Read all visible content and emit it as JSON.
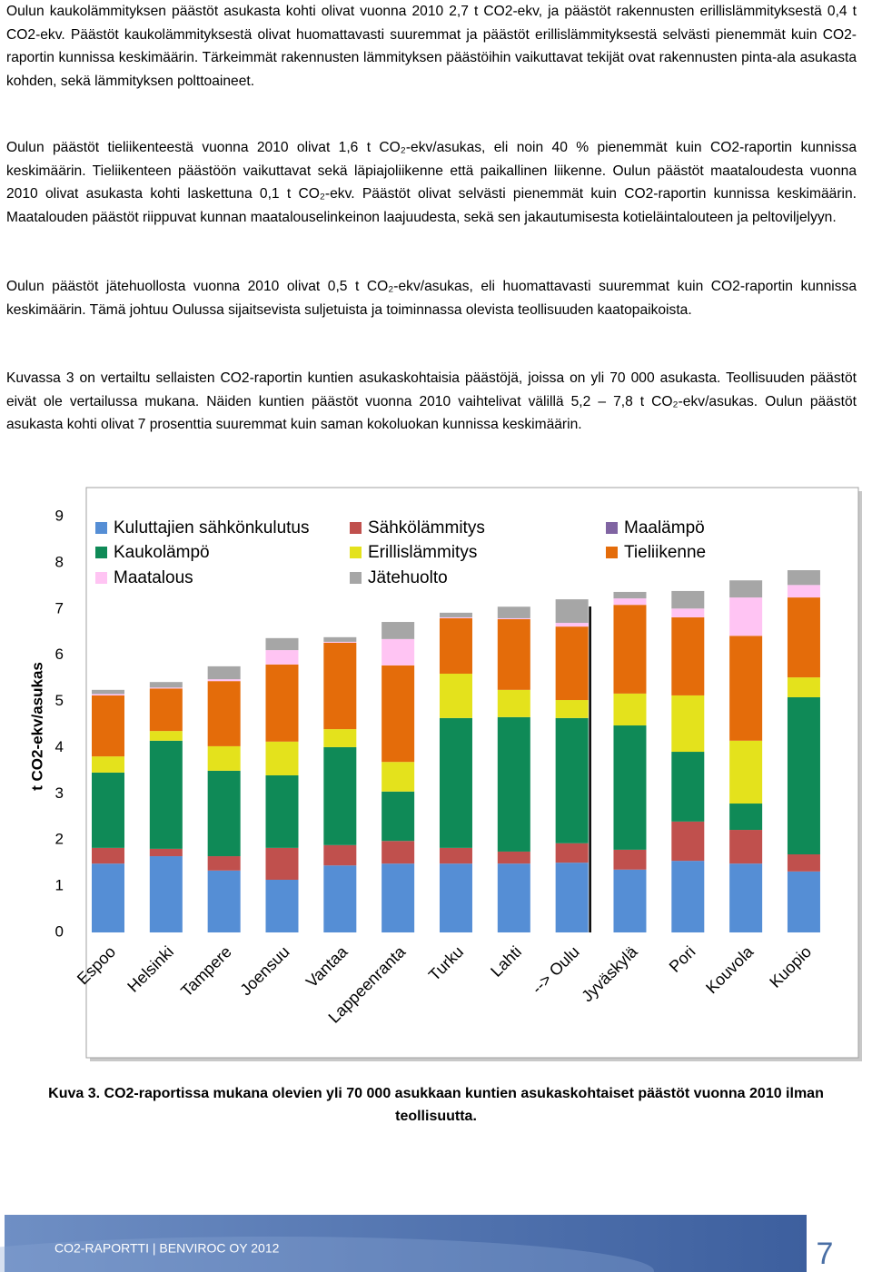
{
  "paragraphs": [
    "Oulun kaukolämmityksen päästöt asukasta kohti olivat vuonna 2010 2,7 t CO2-ekv, ja päästöt rakennusten erillislämmityksestä 0,4 t CO2-ekv. Päästöt kaukolämmityksestä olivat huomattavasti suuremmat ja päästöt erillislämmityksestä selvästi pienemmät kuin CO2-raportin kunnissa keskimäärin. Tärkeimmät rakennusten lämmityksen päästöihin vaikuttavat tekijät ovat rakennusten pinta-ala asukasta kohden, sekä lämmityksen polttoaineet.",
    "Oulun päästöt tieliikenteestä vuonna 2010 olivat 1,6 t CO₂-ekv/asukas, eli noin 40 % pienemmät kuin CO2-raportin kunnissa keskimäärin. Tieliikenteen päästöön vaikuttavat sekä läpiajoliikenne että paikallinen liikenne. Oulun päästöt maataloudesta vuonna 2010 olivat asukasta kohti laskettuna 0,1 t CO₂-ekv. Päästöt olivat selvästi pienemmät kuin CO2-raportin kunnissa keskimäärin. Maatalouden päästöt riippuvat kunnan maatalouselinkeinon laajuudesta, sekä sen jakautumisesta kotieläintalouteen ja peltoviljelyyn.",
    "Oulun päästöt jätehuollosta vuonna 2010 olivat 0,5 t CO₂-ekv/asukas, eli huomattavasti suuremmat kuin CO2-raportin kunnissa keskimäärin. Tämä johtuu Oulussa sijaitsevista suljetuista ja toiminnassa olevista teollisuuden kaatopaikoista.",
    "Kuvassa 3 on vertailtu sellaisten CO2-raportin kuntien asukaskohtaisia päästöjä, joissa on yli 70 000 asukasta. Teollisuuden päästöt eivät ole vertailussa mukana. Näiden kuntien päästöt vuonna 2010 vaihtelivat välillä 5,2 – 7,8 t CO₂-ekv/asukas. Oulun päästöt asukasta kohti olivat 7 prosenttia suuremmat kuin saman kokoluokan kunnissa keskimäärin."
  ],
  "chart_data": {
    "type": "stacked_bar",
    "y_label": "t CO2-ekv/asukas",
    "categories": [
      "Espoo",
      "Helsinki",
      "Tampere",
      "Joensuu",
      "Vantaa",
      "Lappeenranta",
      "Turku",
      "Lahti",
      "--> Oulu",
      "Jyväskylä",
      "Pori",
      "Kouvola",
      "Kuopio"
    ],
    "series": [
      {
        "name": "Kuluttajien sähkönkulutus",
        "color": "#558ed5",
        "values": [
          1.49,
          1.65,
          1.34,
          1.14,
          1.45,
          1.49,
          1.49,
          1.49,
          1.51,
          1.36,
          1.55,
          1.49,
          1.32
        ]
      },
      {
        "name": "Sähkölämmitys",
        "color": "#c0504d",
        "values": [
          0.34,
          0.16,
          0.31,
          0.69,
          0.44,
          0.49,
          0.34,
          0.26,
          0.42,
          0.43,
          0.85,
          0.73,
          0.37
        ]
      },
      {
        "name": "Maalämpö",
        "color": "#8064a2",
        "values": [
          0,
          0,
          0,
          0,
          0,
          0,
          0,
          0,
          0,
          0,
          0,
          0,
          0
        ]
      },
      {
        "name": "Kaukolämpö",
        "color": "#0f8a57",
        "values": [
          1.63,
          2.34,
          1.85,
          1.57,
          2.12,
          1.07,
          2.81,
          2.91,
          2.71,
          2.69,
          1.51,
          0.57,
          3.4
        ]
      },
      {
        "name": "Erillislämmitys",
        "color": "#e4e21c",
        "values": [
          0.35,
          0.21,
          0.53,
          0.73,
          0.39,
          0.64,
          0.96,
          0.59,
          0.39,
          0.69,
          1.22,
          1.36,
          0.43
        ]
      },
      {
        "name": "Tieliikenne",
        "color": "#e46c0a",
        "values": [
          1.32,
          0.92,
          1.41,
          1.67,
          1.87,
          2.09,
          1.2,
          1.53,
          1.59,
          1.92,
          1.69,
          2.27,
          1.73
        ]
      },
      {
        "name": "Maatalous",
        "color": "#ffc4f3",
        "values": [
          0.03,
          0.02,
          0.04,
          0.31,
          0.02,
          0.57,
          0.02,
          0.02,
          0.08,
          0.14,
          0.19,
          0.83,
          0.27
        ]
      },
      {
        "name": "Jätehuolto",
        "color": "#a6a6a6",
        "values": [
          0.09,
          0.12,
          0.28,
          0.26,
          0.1,
          0.37,
          0.1,
          0.25,
          0.51,
          0.14,
          0.38,
          0.37,
          0.32
        ]
      }
    ],
    "ylim": [
      0,
      9
    ],
    "yticks": [
      0,
      1,
      2,
      3,
      4,
      5,
      6,
      7,
      8,
      9
    ],
    "grid": false,
    "legend": "top"
  },
  "caption": "Kuva 3. CO2-raportissa mukana olevien yli 70 000 asukkaan kuntien asukaskohtaiset päästöt vuonna 2010 ilman teollisuutta.",
  "footer": {
    "text": "CO2-RAPORTTI | BENVIROC OY 2012",
    "page_number": "7"
  }
}
